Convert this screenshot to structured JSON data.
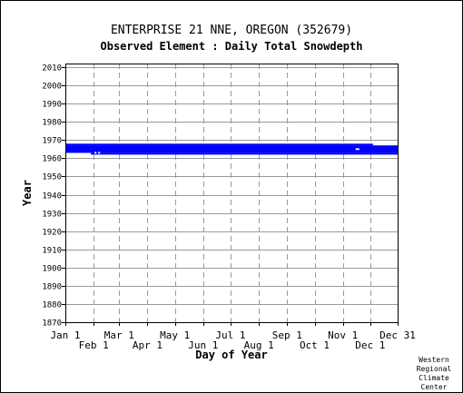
{
  "chart_data": {
    "type": "bar",
    "title": "ENTERPRISE 21 NNE, OREGON   (352679)",
    "subtitle": "Observed Element : Daily Total Snowdepth",
    "xlabel": "Day of Year",
    "ylabel": "Year",
    "xlim": [
      1,
      365
    ],
    "ylim": [
      1870,
      2012
    ],
    "y_ticks": [
      1870,
      1880,
      1890,
      1900,
      1910,
      1920,
      1930,
      1940,
      1950,
      1960,
      1970,
      1980,
      1990,
      2000,
      2010
    ],
    "x_ticks_upper": [
      {
        "label": "Jan 1",
        "day": 1
      },
      {
        "label": "Mar 1",
        "day": 60
      },
      {
        "label": "May 1",
        "day": 121
      },
      {
        "label": "Jul 1",
        "day": 182
      },
      {
        "label": "Sep 1",
        "day": 244
      },
      {
        "label": "Nov 1",
        "day": 305
      },
      {
        "label": "Dec 31",
        "day": 365
      }
    ],
    "x_ticks_lower": [
      {
        "label": "Feb 1",
        "day": 32
      },
      {
        "label": "Apr 1",
        "day": 91
      },
      {
        "label": "Jun 1",
        "day": 152
      },
      {
        "label": "Aug 1",
        "day": 213
      },
      {
        "label": "Oct 1",
        "day": 274
      },
      {
        "label": "Dec 1",
        "day": 335
      }
    ],
    "grid": true,
    "series_color": "#0000ff",
    "record_bands": [
      {
        "start_day": 1,
        "end_day": 365,
        "start_year": 1963.7,
        "end_year": 1967
      },
      {
        "start_day": 1,
        "end_day": 365,
        "start_year": 1963,
        "end_year": 1967
      },
      {
        "start_day": 29,
        "end_day": 365,
        "start_year": 1962,
        "end_year": 1963
      },
      {
        "start_day": 1,
        "end_day": 29,
        "start_year": 1963,
        "end_year": 1964
      },
      {
        "start_day": 1,
        "end_day": 338,
        "start_year": 1967,
        "end_year": 1968
      }
    ],
    "gaps": [
      {
        "day": 34,
        "year": 1963
      },
      {
        "day": 38,
        "year": 1963
      },
      {
        "day": 320,
        "year": 1965
      },
      {
        "day": 322,
        "year": 1965
      }
    ]
  },
  "credit": [
    "Western",
    "Regional",
    "Climate",
    "Center"
  ]
}
